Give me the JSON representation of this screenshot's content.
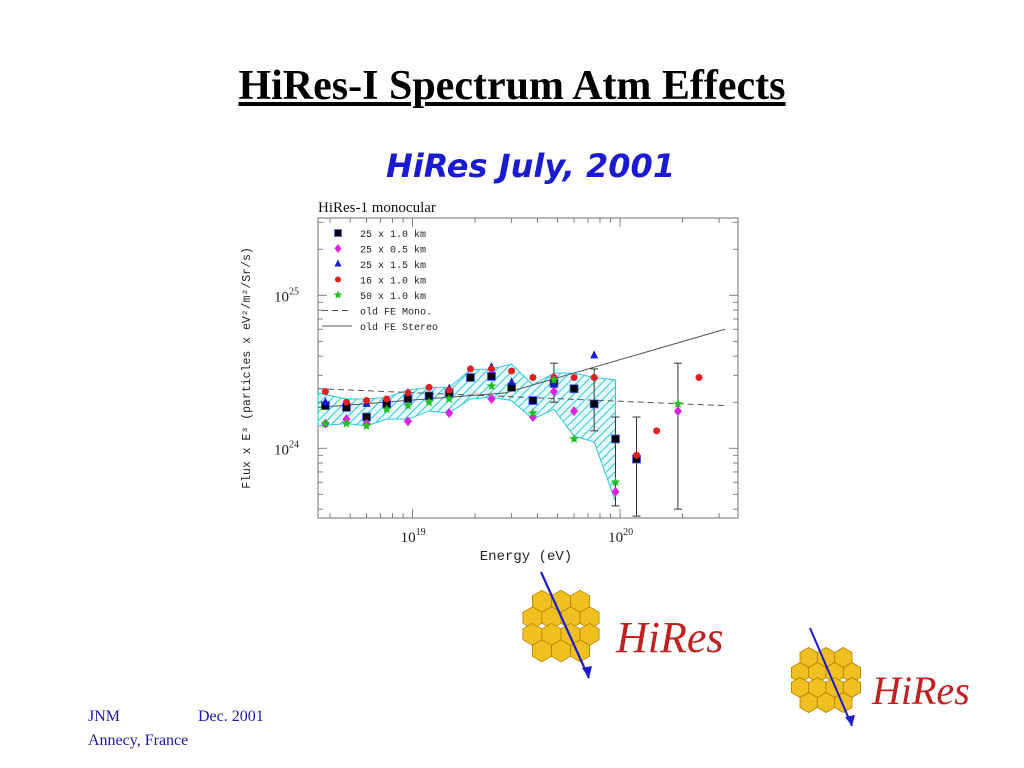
{
  "slide": {
    "title": "HiRes-I Spectrum Atm Effects",
    "chart_heading": "HiRes July, 2001"
  },
  "footer": {
    "author": "JNM",
    "date": "Dec. 2001",
    "location": "Annecy, France"
  },
  "logos": [
    {
      "text": "HiRes",
      "icon": "hexagon-detector-logo"
    },
    {
      "text": "HiRes",
      "icon": "hexagon-detector-logo"
    }
  ],
  "colors": {
    "title": "#000000",
    "heading": "#1a1ad0",
    "footer": "#1a1aa0",
    "band": "#30c8d8",
    "logo_hex": "#f0c020",
    "logo_text": "#c02020",
    "logo_arrow": "#1a1ad0"
  },
  "chart_data": {
    "type": "scatter",
    "title": "HiRes-1 monocular",
    "xlabel": "Energy  (eV)",
    "ylabel": "Flux  x  E³  (particles  x  eV²/m²/Sr/s)",
    "x_scale": "log",
    "y_scale": "log",
    "xlim": [
      3.5e+18,
      3.7e+20
    ],
    "ylim": [
      3.5e+23,
      3.2e+25
    ],
    "x_ticks": [
      {
        "value": 1e+19,
        "base": "10",
        "exp": "19"
      },
      {
        "value": 1e+20,
        "base": "10",
        "exp": "20"
      }
    ],
    "y_ticks": [
      {
        "value": 1e+24,
        "base": "10",
        "exp": "24"
      },
      {
        "value": 1e+25,
        "base": "10",
        "exp": "25"
      }
    ],
    "legend_position": "top-left",
    "series": [
      {
        "name": "25  x  1.0  km",
        "marker": "square",
        "color": "#000000",
        "x": [
          3.8e+18,
          4.8e+18,
          6e+18,
          7.5e+18,
          9.5e+18,
          1.2e+19,
          1.5e+19,
          1.9e+19,
          2.4e+19,
          3e+19,
          3.8e+19,
          4.8e+19,
          6e+19,
          7.5e+19,
          9.5e+19,
          1.2e+20
        ],
        "y": [
          1.9e+24,
          1.85e+24,
          1.6e+24,
          1.95e+24,
          2.1e+24,
          2.2e+24,
          2.3e+24,
          2.9e+24,
          2.95e+24,
          2.5e+24,
          2.05e+24,
          2.7e+24,
          2.45e+24,
          1.95e+24,
          1.15e+24,
          8.5e+23
        ]
      },
      {
        "name": "25  x  0.5  km",
        "marker": "diamond",
        "color": "#e020e0",
        "x": [
          3.8e+18,
          4.8e+18,
          6e+18,
          9.5e+18,
          1.5e+19,
          2.4e+19,
          3.8e+19,
          4.8e+19,
          6e+19,
          9.5e+19,
          1.9e+20
        ],
        "y": [
          1.45e+24,
          1.55e+24,
          1.45e+24,
          1.5e+24,
          1.7e+24,
          2.1e+24,
          1.6e+24,
          2.35e+24,
          1.75e+24,
          5.2e+23,
          1.75e+24
        ]
      },
      {
        "name": "25  x  1.5  km",
        "marker": "triangle",
        "color": "#1a1ad0",
        "x": [
          3.8e+18,
          6e+18,
          9.5e+18,
          1.5e+19,
          2.4e+19,
          3e+19,
          4.8e+19,
          7.5e+19
        ],
        "y": [
          2e+24,
          1.95e+24,
          2.3e+24,
          2.45e+24,
          3.4e+24,
          2.7e+24,
          2.6e+24,
          4.05e+24
        ]
      },
      {
        "name": "16  x  1.0  km",
        "marker": "circle",
        "color": "#e02020",
        "x": [
          3.8e+18,
          4.8e+18,
          6e+18,
          7.5e+18,
          9.5e+18,
          1.2e+19,
          1.5e+19,
          1.9e+19,
          2.4e+19,
          3e+19,
          3.8e+19,
          4.8e+19,
          6e+19,
          7.5e+19,
          1.2e+20,
          1.5e+20,
          2.4e+20
        ],
        "y": [
          2.35e+24,
          2e+24,
          2.05e+24,
          2.1e+24,
          2.3e+24,
          2.5e+24,
          2.4e+24,
          3.3e+24,
          3.3e+24,
          3.2e+24,
          2.9e+24,
          2.9e+24,
          2.9e+24,
          2.9e+24,
          9e+23,
          1.3e+24,
          2.9e+24
        ]
      },
      {
        "name": "50  x  1.0  km",
        "marker": "star",
        "color": "#20c020",
        "x": [
          3.8e+18,
          4.8e+18,
          6e+18,
          7.5e+18,
          9.5e+18,
          1.2e+19,
          1.5e+19,
          2.4e+19,
          3.8e+19,
          4.8e+19,
          6e+19,
          9.5e+19,
          1.9e+20
        ],
        "y": [
          1.45e+24,
          1.45e+24,
          1.4e+24,
          1.8e+24,
          1.9e+24,
          2e+24,
          2.1e+24,
          2.55e+24,
          1.7e+24,
          2.8e+24,
          1.15e+24,
          6e+23,
          1.95e+24
        ]
      },
      {
        "name": "old  FE  Mono.",
        "type": "line",
        "style": "dashed",
        "color": "#555555",
        "x": [
          3.5e+18,
          3.2e+20
        ],
        "y": [
          2.45e+24,
          1.9e+24
        ]
      },
      {
        "name": "old  FE  Stereo",
        "type": "line",
        "style": "solid",
        "color": "#555555",
        "x": [
          3.5e+18,
          2.8e+19,
          3.2e+20
        ],
        "y": [
          1.85e+24,
          2.3e+24,
          6e+24
        ]
      }
    ],
    "error_bars": [
      {
        "x": 4.8e+19,
        "low": 2e+24,
        "high": 3.6e+24
      },
      {
        "x": 7.5e+19,
        "low": 1.3e+24,
        "high": 3.3e+24
      },
      {
        "x": 9.5e+19,
        "low": 4.2e+23,
        "high": 1.6e+24
      },
      {
        "x": 1.2e+20,
        "low": 3.6e+23,
        "high": 1.6e+24
      },
      {
        "x": 1.9e+20,
        "low": 4e+23,
        "high": 3.6e+24
      }
    ],
    "systematic_band": {
      "x": [
        3.5e+18,
        4.8e+18,
        6e+18,
        7.5e+18,
        9.5e+18,
        1.2e+19,
        1.5e+19,
        1.9e+19,
        2.4e+19,
        3e+19,
        3.8e+19,
        4.8e+19,
        6e+19,
        7.5e+19,
        9.5e+19
      ],
      "low": [
        1.4e+24,
        1.45e+24,
        1.4e+24,
        1.55e+24,
        1.55e+24,
        1.75e+24,
        1.7e+24,
        2.1e+24,
        2.15e+24,
        2.05e+24,
        1.55e+24,
        1.8e+24,
        1.2e+24,
        1.1e+24,
        4.5e+23
      ],
      "high": [
        2.3e+24,
        2.1e+24,
        2.1e+24,
        2.15e+24,
        2.4e+24,
        2.5e+24,
        2.5e+24,
        3.25e+24,
        3.3e+24,
        3.55e+24,
        2.6e+24,
        3.1e+24,
        3.1e+24,
        2.9e+24,
        2.8e+24
      ]
    }
  }
}
